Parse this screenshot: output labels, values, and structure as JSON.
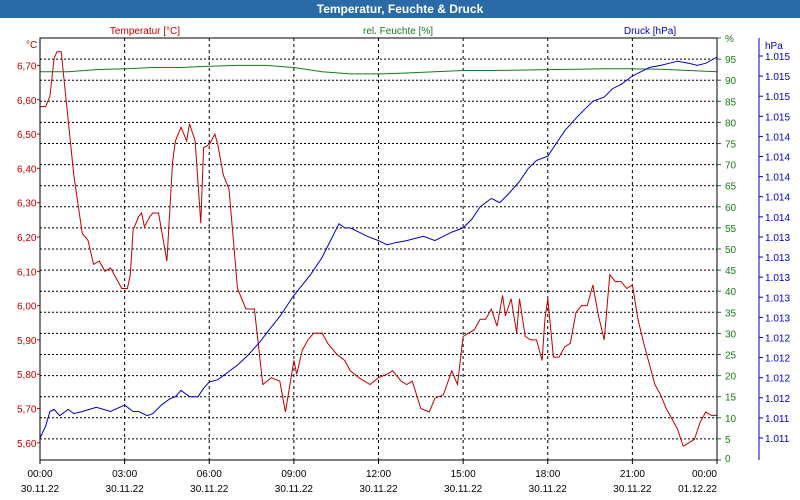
{
  "window": {
    "title": "Temperatur, Feuchte & Druck"
  },
  "colors": {
    "temperature": "#c00000",
    "humidity": "#1a7a1a",
    "pressure": "#0000c0",
    "grid": "#000000",
    "titlebar": "#2a6aa6"
  },
  "chart_data": {
    "type": "line",
    "title": "Temperatur, Feuchte & Druck",
    "legend": [
      "Temperatur [°C]",
      "rel. Feuchte [%]",
      "Druck [hPa]"
    ],
    "left_axis": {
      "unit": "°C",
      "ylim": [
        5.55,
        6.78
      ],
      "ticks": [
        5.6,
        5.7,
        5.8,
        5.9,
        6.0,
        6.1,
        6.2,
        6.3,
        6.4,
        6.5,
        6.6,
        6.7
      ],
      "tick_labels": [
        "5,60",
        "5,70",
        "5,80",
        "5,90",
        "6,00",
        "6,10",
        "6,20",
        "6,30",
        "6,40",
        "6,50",
        "6,60",
        "6,70"
      ]
    },
    "humidity_axis": {
      "unit": "%",
      "ylim": [
        0,
        100
      ],
      "ticks": [
        0,
        5,
        10,
        15,
        20,
        25,
        30,
        35,
        40,
        45,
        50,
        55,
        60,
        65,
        70,
        75,
        80,
        85,
        90,
        95,
        100
      ],
      "tick_labels": [
        "0",
        "5",
        "10",
        "15",
        "20",
        "25",
        "30",
        "35",
        "40",
        "45",
        "50",
        "55",
        "60",
        "65",
        "70",
        "75",
        "80",
        "85",
        "90",
        "95",
        "%"
      ]
    },
    "pressure_axis": {
      "unit": "hPa",
      "tick_labels": [
        "1.011",
        "1.011",
        "1.012",
        "1.012",
        "1.012",
        "1.012",
        "1.013",
        "1.013",
        "1.013",
        "1.013",
        "1.013",
        "1.014",
        "1.014",
        "1.014",
        "1.014",
        "1.014",
        "1.015",
        "1.015",
        "1.015",
        "1.015"
      ]
    },
    "xlim": [
      0,
      24
    ],
    "x_ticks": [
      0,
      3,
      6,
      9,
      12,
      15,
      18,
      21,
      24
    ],
    "x_time_labels": [
      "00:00",
      "03:00",
      "06:00",
      "09:00",
      "12:00",
      "15:00",
      "18:00",
      "21:00",
      "00:00"
    ],
    "x_date_labels": [
      "30.11.22",
      "30.11.22",
      "30.11.22",
      "30.11.22",
      "30.11.22",
      "30.11.22",
      "30.11.22",
      "30.11.22",
      "01.12.22"
    ],
    "series": [
      {
        "name": "Temperatur [°C]",
        "axis": "left",
        "x": [
          0,
          0.2,
          0.35,
          0.5,
          0.6,
          0.75,
          0.9,
          1.2,
          1.5,
          1.7,
          1.9,
          2.1,
          2.3,
          2.5,
          2.7,
          2.9,
          3.1,
          3.2,
          3.3,
          3.5,
          3.6,
          3.7,
          3.9,
          4.0,
          4.2,
          4.5,
          4.7,
          4.8,
          5.0,
          5.2,
          5.3,
          5.5,
          5.7,
          5.8,
          6.0,
          6.2,
          6.3,
          6.5,
          6.7,
          7.0,
          7.3,
          7.6,
          7.9,
          8.2,
          8.5,
          8.7,
          9.0,
          9.1,
          9.3,
          9.5,
          9.7,
          10.0,
          10.2,
          10.5,
          10.8,
          11.0,
          11.3,
          11.7,
          12.0,
          12.3,
          12.5,
          12.8,
          13.0,
          13.2,
          13.5,
          13.8,
          14.0,
          14.3,
          14.6,
          14.8,
          15.0,
          15.2,
          15.4,
          15.6,
          15.8,
          16.0,
          16.2,
          16.4,
          16.5,
          16.7,
          16.9,
          17.0,
          17.2,
          17.4,
          17.6,
          17.8,
          17.9,
          18.0,
          18.2,
          18.4,
          18.6,
          18.8,
          19.0,
          19.2,
          19.4,
          19.6,
          19.8,
          20.0,
          20.2,
          20.4,
          20.6,
          20.8,
          21.0,
          21.2,
          21.4,
          21.6,
          21.8,
          22.0,
          22.2,
          22.4,
          22.6,
          22.8,
          23.0,
          23.2,
          23.4,
          23.6,
          23.8,
          24.0
        ],
        "values": [
          6.58,
          6.58,
          6.61,
          6.72,
          6.74,
          6.74,
          6.62,
          6.38,
          6.21,
          6.19,
          6.12,
          6.13,
          6.1,
          6.11,
          6.08,
          6.05,
          6.05,
          6.09,
          6.22,
          6.26,
          6.27,
          6.23,
          6.26,
          6.27,
          6.27,
          6.13,
          6.42,
          6.48,
          6.52,
          6.48,
          6.53,
          6.48,
          6.24,
          6.46,
          6.47,
          6.5,
          6.47,
          6.38,
          6.34,
          6.05,
          5.99,
          5.99,
          5.77,
          5.79,
          5.78,
          5.69,
          5.84,
          5.8,
          5.87,
          5.9,
          5.92,
          5.92,
          5.89,
          5.86,
          5.84,
          5.81,
          5.79,
          5.77,
          5.79,
          5.8,
          5.81,
          5.78,
          5.77,
          5.78,
          5.7,
          5.69,
          5.73,
          5.74,
          5.81,
          5.77,
          5.91,
          5.92,
          5.93,
          5.96,
          5.96,
          5.99,
          5.94,
          6.03,
          5.97,
          6.02,
          5.92,
          6.02,
          5.91,
          5.9,
          5.9,
          5.84,
          5.96,
          6.02,
          5.85,
          5.85,
          5.88,
          5.89,
          5.98,
          6.0,
          6.0,
          6.06,
          5.97,
          5.9,
          6.09,
          6.07,
          6.07,
          6.05,
          6.06,
          5.96,
          5.89,
          5.83,
          5.77,
          5.74,
          5.7,
          5.67,
          5.64,
          5.59,
          5.6,
          5.61,
          5.66,
          5.69,
          5.68,
          5.68
        ]
      },
      {
        "name": "rel. Feuchte [%]",
        "axis": "humidity",
        "x": [
          0,
          1,
          2,
          3,
          4,
          5,
          6,
          7,
          8,
          9,
          10,
          11,
          12,
          13,
          14,
          15,
          16,
          17,
          18,
          19,
          20,
          21,
          22,
          23,
          24
        ],
        "values": [
          92.0,
          92.0,
          92.5,
          92.7,
          93.0,
          93.0,
          93.3,
          93.5,
          93.5,
          93.0,
          92.0,
          91.5,
          91.5,
          91.7,
          92.0,
          92.3,
          92.3,
          92.4,
          92.5,
          92.6,
          92.7,
          92.7,
          92.6,
          92.3,
          92.0
        ]
      },
      {
        "name": "Druck [hPa]",
        "axis": "pressure",
        "x": [
          0,
          0.2,
          0.35,
          0.5,
          0.7,
          1.0,
          1.2,
          1.5,
          2.0,
          2.5,
          3.0,
          3.3,
          3.5,
          3.8,
          4.0,
          4.3,
          4.6,
          4.8,
          5.0,
          5.3,
          5.6,
          5.8,
          6.0,
          6.3,
          6.6,
          7.0,
          7.4,
          7.8,
          8.2,
          8.5,
          8.8,
          9.0,
          9.3,
          9.6,
          10.0,
          10.3,
          10.6,
          10.8,
          11.0,
          11.3,
          11.6,
          12.0,
          12.3,
          12.6,
          13.0,
          13.3,
          13.6,
          14.0,
          14.3,
          14.6,
          15.0,
          15.3,
          15.6,
          16.0,
          16.3,
          16.6,
          17.0,
          17.3,
          17.6,
          18.0,
          18.3,
          18.6,
          19.0,
          19.3,
          19.6,
          20.0,
          20.3,
          20.6,
          21.0,
          21.3,
          21.6,
          22.0,
          22.3,
          22.6,
          23.0,
          23.3,
          23.6,
          24.0
        ],
        "values": [
          5.2,
          8.0,
          11.5,
          12.0,
          10.5,
          12.0,
          11.0,
          11.5,
          12.5,
          11.5,
          13.0,
          11.5,
          11.5,
          10.5,
          11.0,
          13.0,
          14.5,
          15.0,
          16.5,
          15.0,
          15.0,
          17.0,
          18.5,
          19.0,
          20.5,
          22.5,
          25.0,
          28.0,
          31.5,
          34.0,
          37.0,
          39.0,
          41.5,
          44.0,
          48.0,
          52.0,
          56.0,
          55.0,
          55.0,
          54.0,
          53.0,
          52.0,
          51.0,
          51.5,
          52.0,
          52.5,
          53.0,
          52.0,
          53.0,
          54.0,
          55.0,
          57.0,
          60.0,
          62.0,
          61.0,
          63.0,
          66.0,
          69.0,
          71.0,
          72.0,
          75.0,
          78.0,
          81.0,
          83.0,
          85.0,
          86.0,
          88.0,
          89.0,
          91.0,
          92.0,
          93.0,
          93.5,
          94.0,
          94.5,
          94.0,
          93.5,
          94.0,
          95.5
        ]
      }
    ]
  }
}
